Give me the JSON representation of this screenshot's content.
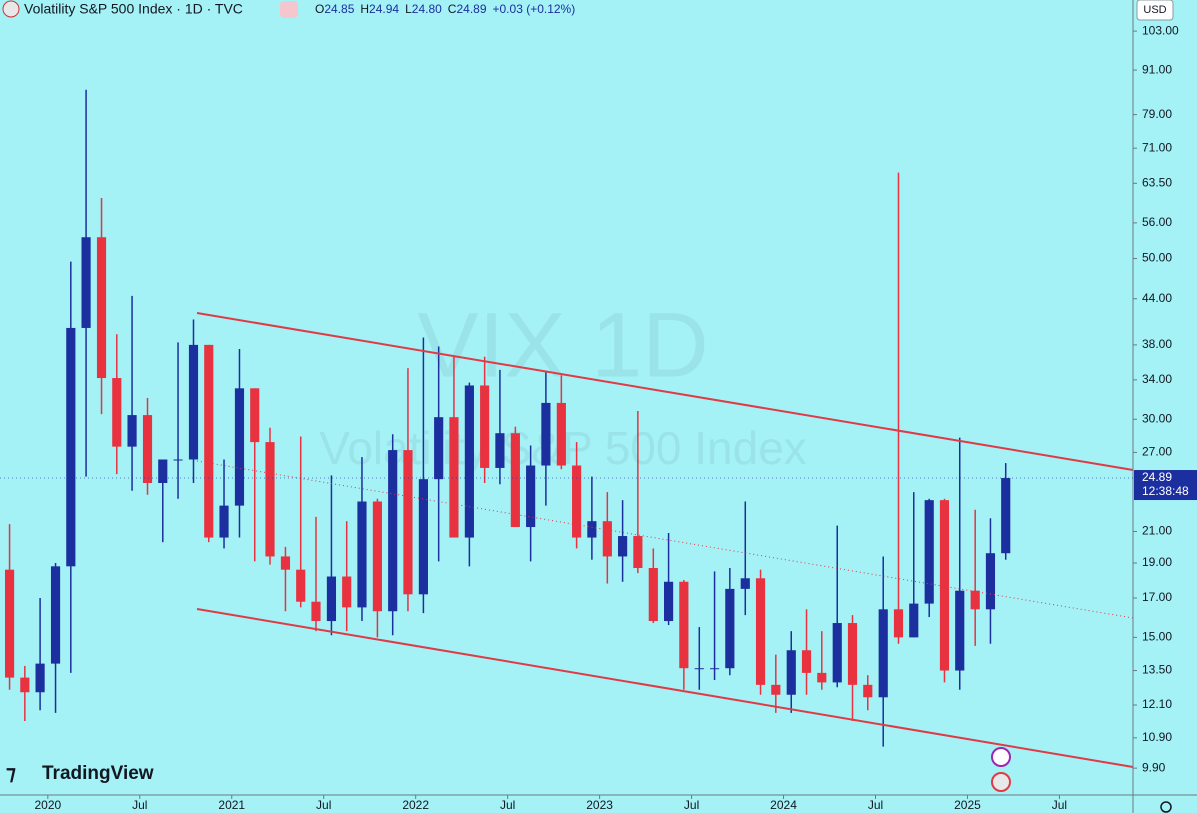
{
  "header": {
    "title": "Volatility S&P 500 Index · 1D · TVC",
    "ohlc": [
      {
        "label": "O",
        "value": "24.85"
      },
      {
        "label": "H",
        "value": "24.94"
      },
      {
        "label": "L",
        "value": "24.80"
      },
      {
        "label": "C",
        "value": "24.89"
      }
    ],
    "change": "+0.03 (+0.12%)",
    "currency": "USD",
    "watermark": "VIX 1D",
    "watermark_sub": "Volatility S&P 500 Index",
    "logo": "TradingView"
  },
  "chart_data": {
    "type": "candlestick",
    "log_scale": true,
    "up_color": "#1c2f9e",
    "down_color": "#e8323f",
    "x": [
      2019.792,
      2019.875,
      2019.958,
      2020.042,
      2020.125,
      2020.208,
      2020.292,
      2020.375,
      2020.458,
      2020.542,
      2020.625,
      2020.708,
      2020.792,
      2020.875,
      2020.958,
      2021.042,
      2021.125,
      2021.208,
      2021.292,
      2021.375,
      2021.458,
      2021.542,
      2021.625,
      2021.708,
      2021.792,
      2021.875,
      2021.958,
      2022.042,
      2022.125,
      2022.208,
      2022.292,
      2022.375,
      2022.458,
      2022.542,
      2022.625,
      2022.708,
      2022.792,
      2022.875,
      2022.958,
      2023.042,
      2023.125,
      2023.208,
      2023.292,
      2023.375,
      2023.458,
      2023.542,
      2023.625,
      2023.708,
      2023.792,
      2023.875,
      2023.958,
      2024.042,
      2024.125,
      2024.208,
      2024.292,
      2024.375,
      2024.458,
      2024.542,
      2024.625,
      2024.708,
      2024.792,
      2024.875,
      2024.958,
      2025.042,
      2025.125,
      2025.208
    ],
    "open": [
      18.6,
      13.2,
      12.6,
      13.8,
      18.8,
      40.1,
      53.5,
      34.2,
      27.5,
      30.4,
      24.5,
      26.4,
      26.4,
      38.0,
      20.6,
      22.8,
      33.1,
      27.9,
      19.4,
      18.6,
      16.8,
      15.8,
      18.2,
      16.5,
      23.1,
      16.3,
      27.2,
      17.2,
      24.8,
      30.2,
      20.6,
      33.4,
      25.7,
      28.7,
      21.3,
      25.9,
      31.6,
      25.9,
      20.6,
      21.7,
      19.4,
      20.7,
      18.7,
      15.8,
      17.9,
      13.6,
      13.6,
      13.6,
      17.5,
      18.1,
      12.9,
      12.5,
      14.4,
      13.4,
      13.0,
      15.7,
      12.9,
      12.4,
      16.4,
      15.0,
      16.7,
      23.2,
      13.5,
      17.4,
      16.4,
      19.6
    ],
    "high": [
      21.5,
      13.7,
      17.0,
      19.0,
      49.5,
      85.5,
      60.6,
      39.3,
      44.4,
      32.1,
      26.4,
      38.3,
      41.2,
      38.0,
      26.4,
      37.5,
      33.1,
      29.2,
      20.0,
      28.4,
      22.0,
      25.1,
      21.7,
      26.6,
      23.3,
      28.6,
      35.3,
      38.9,
      37.8,
      36.6,
      33.7,
      36.6,
      35.1,
      29.3,
      27.6,
      34.9,
      34.5,
      27.9,
      25.0,
      23.8,
      23.2,
      30.8,
      19.9,
      20.9,
      18.0,
      15.5,
      18.5,
      18.7,
      23.1,
      18.6,
      14.2,
      15.3,
      16.4,
      15.3,
      21.4,
      16.1,
      13.3,
      19.4,
      65.7,
      23.8,
      23.3,
      23.3,
      28.3,
      22.5,
      21.9,
      26.1
    ],
    "low": [
      12.7,
      11.5,
      11.9,
      11.8,
      13.4,
      25.0,
      30.5,
      25.2,
      23.9,
      23.6,
      20.3,
      23.3,
      24.5,
      20.3,
      19.9,
      20.6,
      19.1,
      18.9,
      16.3,
      16.5,
      15.3,
      15.1,
      15.3,
      15.8,
      15.0,
      15.1,
      16.3,
      16.2,
      19.1,
      20.6,
      18.8,
      24.5,
      24.4,
      21.3,
      19.1,
      22.8,
      25.6,
      19.9,
      19.2,
      17.8,
      17.9,
      18.4,
      15.7,
      15.6,
      12.7,
      12.7,
      13.1,
      13.3,
      16.1,
      12.5,
      11.8,
      11.8,
      12.5,
      12.7,
      12.8,
      11.5,
      11.9,
      10.6,
      14.7,
      15.0,
      16.0,
      13.0,
      12.7,
      14.6,
      14.7,
      19.2
    ],
    "close": [
      13.2,
      12.6,
      13.8,
      18.8,
      40.1,
      53.5,
      34.2,
      27.5,
      30.4,
      24.5,
      26.4,
      26.4,
      38.0,
      20.6,
      22.8,
      33.1,
      27.9,
      19.4,
      18.6,
      16.8,
      15.8,
      18.2,
      16.5,
      23.1,
      16.3,
      27.2,
      17.2,
      24.8,
      30.2,
      20.6,
      33.4,
      25.7,
      28.7,
      21.3,
      25.9,
      31.6,
      25.9,
      20.6,
      21.7,
      19.4,
      20.7,
      18.7,
      15.8,
      17.9,
      13.6,
      13.6,
      13.6,
      17.5,
      18.1,
      12.9,
      12.5,
      14.4,
      13.4,
      13.0,
      15.7,
      12.9,
      12.4,
      16.4,
      15.0,
      16.7,
      23.2,
      13.5,
      17.4,
      16.4,
      19.6,
      24.89
    ],
    "last_price": 24.89,
    "countdown": "12:38:48",
    "xlim": [
      2019.74,
      2025.9
    ],
    "xticks": [
      2020,
      {
        "value": 2020.5,
        "label": "Jul"
      },
      2021,
      {
        "value": 2021.5,
        "label": "Jul"
      },
      2022,
      {
        "value": 2022.5,
        "label": "Jul"
      },
      2023,
      {
        "value": 2023.5,
        "label": "Jul"
      },
      2024,
      {
        "value": 2024.5,
        "label": "Jul"
      },
      2025,
      {
        "value": 2025.5,
        "label": "Jul"
      }
    ],
    "ylim": [
      9.09,
      113.7
    ],
    "yticks": [
      {
        "value": 103,
        "label": "103.00"
      },
      {
        "value": 91,
        "label": "91.00"
      },
      {
        "value": 79,
        "label": "79.00"
      },
      {
        "value": 71,
        "label": "71.00"
      },
      {
        "value": 63.5,
        "label": "63.50"
      },
      {
        "value": 56,
        "label": "56.00"
      },
      {
        "value": 50,
        "label": "50.00"
      },
      {
        "value": 44,
        "label": "44.00"
      },
      {
        "value": 38,
        "label": "38.00"
      },
      {
        "value": 34,
        "label": "34.00"
      },
      {
        "value": 30,
        "label": "30.00"
      },
      {
        "value": 27,
        "label": "27.00"
      },
      {
        "value": 21,
        "label": "21.00"
      },
      {
        "value": 19,
        "label": "19.00"
      },
      {
        "value": 17,
        "label": "17.00"
      },
      {
        "value": 15,
        "label": "15.00"
      },
      {
        "value": 13.5,
        "label": "13.50"
      },
      {
        "value": 12.1,
        "label": "12.10"
      },
      {
        "value": 10.9,
        "label": "10.90"
      },
      {
        "value": 9.9,
        "label": "9.90"
      }
    ]
  }
}
